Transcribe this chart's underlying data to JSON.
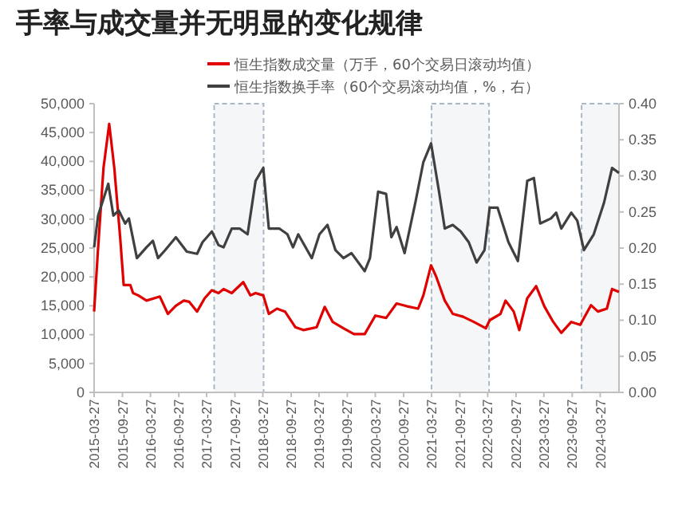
{
  "chart_data": {
    "type": "line",
    "title": "手率与成交量并无明显的变化规律",
    "xlim": [
      "2015-03-27",
      "2024-07-27"
    ],
    "xticks": [
      "2015-03-27",
      "2015-09-27",
      "2016-03-27",
      "2016-09-27",
      "2017-03-27",
      "2017-09-27",
      "2018-03-27",
      "2018-09-27",
      "2019-03-27",
      "2019-09-27",
      "2020-03-27",
      "2020-09-27",
      "2021-03-27",
      "2021-09-27",
      "2022-03-27",
      "2022-09-27",
      "2023-03-27",
      "2023-09-27",
      "2024-03-27"
    ],
    "ylim": [
      0,
      50000
    ],
    "yticks": [
      0,
      {
        "value": 5000,
        "label": "5,000"
      },
      {
        "value": 10000,
        "label": "10,000"
      },
      {
        "value": 15000,
        "label": "15,000"
      },
      {
        "value": 20000,
        "label": "20,000"
      },
      {
        "value": 25000,
        "label": "25,000"
      },
      {
        "value": 30000,
        "label": "30,000"
      },
      {
        "value": 35000,
        "label": "35,000"
      },
      {
        "value": 40000,
        "label": "40,000"
      },
      {
        "value": 45000,
        "label": "45,000"
      },
      {
        "value": 50000,
        "label": "50,000"
      }
    ],
    "y2lim": [
      0,
      0.4
    ],
    "y2ticks": [
      {
        "value": 0,
        "label": "0.00"
      },
      {
        "value": 0.05,
        "label": "0.05"
      },
      {
        "value": 0.1,
        "label": "0.10"
      },
      {
        "value": 0.15,
        "label": "0.15"
      },
      {
        "value": 0.2,
        "label": "0.20"
      },
      {
        "value": 0.25,
        "label": "0.25"
      },
      {
        "value": 0.3,
        "label": "0.30"
      },
      {
        "value": 0.35,
        "label": "0.35"
      },
      {
        "value": 0.4,
        "label": "0.40"
      }
    ],
    "grid": false,
    "legend": "top",
    "line_style": "solid",
    "bands": [
      {
        "axis": "x",
        "from": "2017-05-15",
        "to": "2018-04-01",
        "color": "#a9b8c9"
      },
      {
        "axis": "x",
        "from": "2021-03-27",
        "to": "2022-04-05",
        "color": "#a9b8c9"
      },
      {
        "axis": "x",
        "from": "2023-11-27",
        "to": "2024-07-27",
        "color": "#a9b8c9"
      }
    ],
    "series": [
      {
        "name": "恒生指数成交量（万手，60个交易日滚动均值）",
        "color": "#e00000",
        "x": [
          "2015-03-27",
          "2015-04-22",
          "2015-05-27",
          "2015-07-03",
          "2015-08-05",
          "2015-09-12",
          "2015-10-05",
          "2015-11-17",
          "2015-12-05",
          "2016-01-08",
          "2016-03-01",
          "2016-04-20",
          "2016-05-27",
          "2016-07-18",
          "2016-09-08",
          "2016-10-30",
          "2016-12-03",
          "2017-01-24",
          "2017-03-14",
          "2017-04-30",
          "2017-06-12",
          "2017-07-15",
          "2017-09-06",
          "2017-11-20",
          "2018-01-05",
          "2018-02-08",
          "2018-03-30",
          "2018-05-05",
          "2018-06-27",
          "2018-08-18",
          "2018-10-24",
          "2018-12-15",
          "2019-02-08",
          "2019-03-12",
          "2019-05-03",
          "2019-06-24",
          "2019-09-02",
          "2019-11-09",
          "2020-01-18",
          "2020-03-27",
          "2020-06-05",
          "2020-08-12",
          "2020-10-21",
          "2020-12-30",
          "2021-02-02",
          "2021-03-24",
          "2021-04-27",
          "2021-06-21",
          "2021-08-12",
          "2021-10-18",
          "2021-12-27",
          "2022-03-15",
          "2022-04-09",
          "2022-06-18",
          "2022-07-21",
          "2022-09-12",
          "2022-10-18",
          "2022-12-09",
          "2023-02-05",
          "2023-03-30",
          "2023-05-27",
          "2023-07-18",
          "2023-09-21",
          "2023-11-18",
          "2024-01-27",
          "2024-03-12",
          "2024-05-09",
          "2024-06-12",
          "2024-07-27"
        ],
        "values": [
          14000,
          25100,
          38900,
          46500,
          38900,
          26900,
          18600,
          18600,
          17200,
          16800,
          15900,
          16300,
          16600,
          13600,
          15000,
          15900,
          15700,
          14000,
          16300,
          17700,
          17200,
          17900,
          17200,
          19100,
          16800,
          17200,
          16800,
          13600,
          14500,
          14000,
          11300,
          10800,
          11100,
          11300,
          14800,
          12200,
          11100,
          10100,
          10100,
          13300,
          12900,
          15400,
          14900,
          14500,
          16800,
          22000,
          20000,
          15900,
          13600,
          13100,
          12200,
          11100,
          12500,
          13600,
          15900,
          14000,
          10800,
          16300,
          18400,
          14900,
          12200,
          10300,
          12200,
          11700,
          15100,
          14000,
          14500,
          17900,
          17400
        ]
      },
      {
        "name": "恒生指数换手率（60个交易滚动均值，%，右）",
        "color": "#404040",
        "axis": "y2",
        "x": [
          "2015-03-27",
          "2015-04-22",
          "2015-06-27",
          "2015-07-30",
          "2015-09-03",
          "2015-10-15",
          "2015-11-08",
          "2015-12-30",
          "2016-03-01",
          "2016-04-12",
          "2016-05-15",
          "2016-06-30",
          "2016-09-08",
          "2016-11-18",
          "2017-01-24",
          "2017-02-28",
          "2017-04-30",
          "2017-06-12",
          "2017-07-15",
          "2017-09-06",
          "2017-10-27",
          "2017-12-18",
          "2018-02-08",
          "2018-03-30",
          "2018-05-05",
          "2018-07-12",
          "2018-09-03",
          "2018-10-09",
          "2018-11-12",
          "2019-02-08",
          "2019-03-30",
          "2019-05-21",
          "2019-07-12",
          "2019-09-02",
          "2019-10-24",
          "2020-01-18",
          "2020-02-21",
          "2020-04-14",
          "2020-06-05",
          "2020-07-09",
          "2020-08-12",
          "2020-10-03",
          "2020-12-12",
          "2021-02-02",
          "2021-03-24",
          "2021-05-15",
          "2021-06-21",
          "2021-08-12",
          "2021-10-03",
          "2021-11-24",
          "2022-01-14",
          "2022-03-06",
          "2022-04-09",
          "2022-05-30",
          "2022-08-09",
          "2022-10-09",
          "2022-12-09",
          "2023-01-21",
          "2023-03-03",
          "2023-05-12",
          "2023-06-15",
          "2023-07-18",
          "2023-09-21",
          "2023-10-30",
          "2023-12-12",
          "2024-02-14",
          "2024-04-21",
          "2024-06-12",
          "2024-07-27"
        ],
        "values": [
          0.201,
          0.245,
          0.289,
          0.245,
          0.252,
          0.234,
          0.241,
          0.186,
          0.201,
          0.21,
          0.186,
          0.197,
          0.215,
          0.195,
          0.192,
          0.208,
          0.223,
          0.204,
          0.201,
          0.227,
          0.227,
          0.219,
          0.293,
          0.311,
          0.227,
          0.227,
          0.219,
          0.201,
          0.219,
          0.186,
          0.219,
          0.232,
          0.197,
          0.186,
          0.193,
          0.168,
          0.186,
          0.278,
          0.275,
          0.215,
          0.229,
          0.193,
          0.263,
          0.319,
          0.345,
          0.278,
          0.227,
          0.232,
          0.223,
          0.208,
          0.18,
          0.197,
          0.256,
          0.256,
          0.208,
          0.182,
          0.293,
          0.297,
          0.234,
          0.241,
          0.249,
          0.227,
          0.249,
          0.238,
          0.197,
          0.219,
          0.263,
          0.311,
          0.304
        ]
      }
    ]
  }
}
